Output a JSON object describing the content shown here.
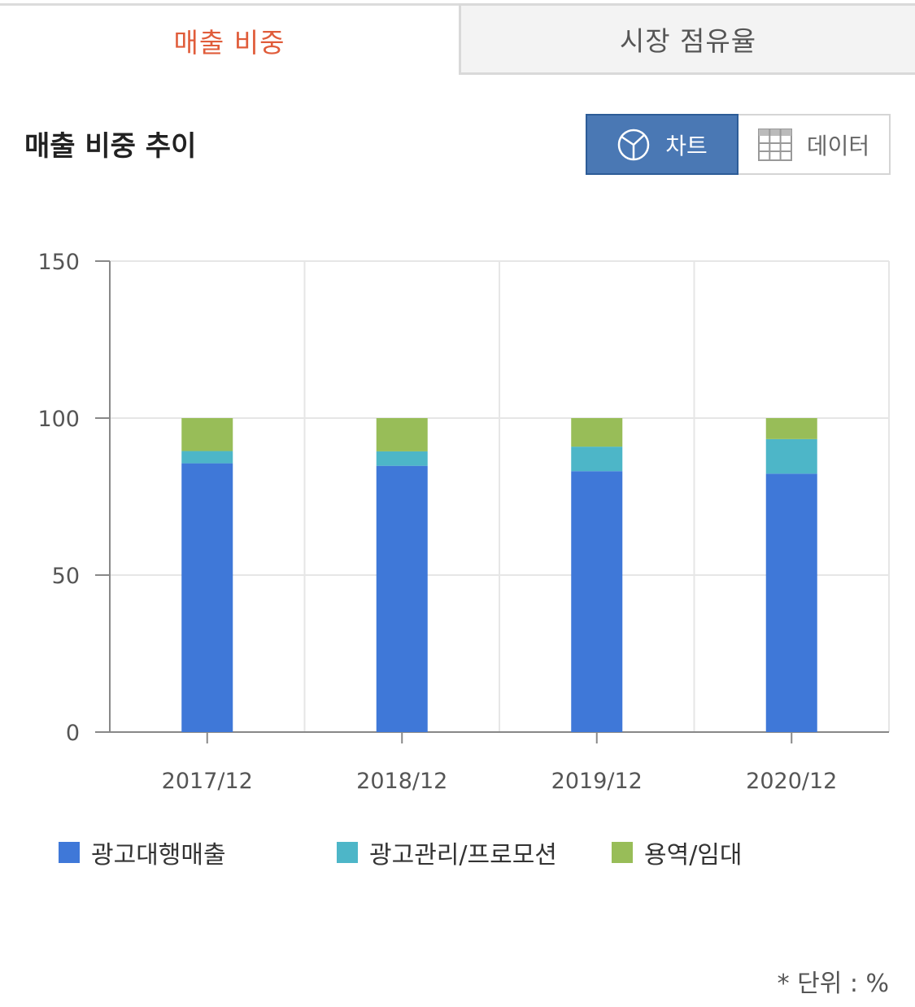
{
  "tabs": [
    {
      "label": "매출 비중",
      "active": true
    },
    {
      "label": "시장 점유율",
      "active": false
    }
  ],
  "section": {
    "title": "매출 비중 추이"
  },
  "view_toggle": {
    "chart_label": "차트",
    "data_label": "데이터"
  },
  "colors": {
    "active_tab": "#e05c3a",
    "toggle_active": "#4a78b4"
  },
  "unit_note": "* 단위 : %",
  "chart_data": {
    "type": "bar",
    "stacked": true,
    "categories": [
      "2017/12",
      "2018/12",
      "2019/12",
      "2020/12"
    ],
    "series": [
      {
        "name": "광고대행매출",
        "color": "#3f78d8",
        "values": [
          85.6,
          84.8,
          83.1,
          82.3
        ]
      },
      {
        "name": "광고관리/프로모션",
        "color": "#4db6c8",
        "values": [
          3.9,
          4.6,
          7.8,
          11.0
        ]
      },
      {
        "name": "용역/임대",
        "color": "#98bd58",
        "values": [
          10.5,
          10.6,
          9.1,
          6.7
        ]
      }
    ],
    "y_ticks": [
      "0",
      "50",
      "100",
      "150"
    ],
    "ylim": [
      0,
      150
    ],
    "grid": true,
    "legend_position": "bottom"
  }
}
